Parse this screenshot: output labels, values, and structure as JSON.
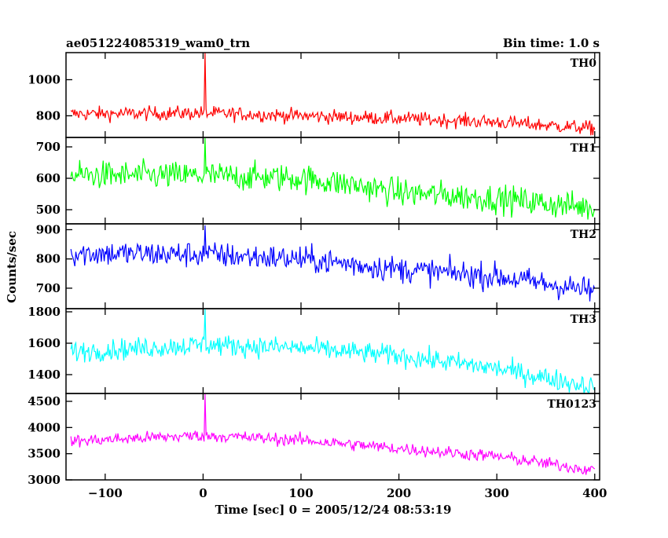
{
  "header": {
    "left": "ae051224085319_wam0_trn",
    "right": "Bin time: 1.0 s"
  },
  "chart_data": {
    "type": "line",
    "title": "ae051224085319_wam0_trn",
    "bin_time": "Bin time: 1.0 s",
    "xlabel": "Time [sec] 0 = 2005/12/24 08:53:19",
    "ylabel": "Counts/sec",
    "xlim": [
      -140,
      405
    ],
    "xticks": [
      -100,
      0,
      100,
      200,
      300,
      400
    ],
    "grid": false,
    "legend": "none",
    "panels": [
      {
        "name": "TH0",
        "color": "#ff0000",
        "ylim": [
          680,
          1150
        ],
        "yticks": [
          800,
          1000
        ],
        "trend": [
          [
            -135,
            810
          ],
          [
            0,
            815
          ],
          [
            100,
            800
          ],
          [
            200,
            785
          ],
          [
            300,
            765
          ],
          [
            400,
            730
          ]
        ],
        "noise": 28,
        "spike": {
          "x": 2,
          "y": 1150
        }
      },
      {
        "name": "TH1",
        "color": "#00ff00",
        "ylim": [
          455,
          730
        ],
        "yticks": [
          500,
          600,
          700
        ],
        "trend": [
          [
            -135,
            610
          ],
          [
            0,
            608
          ],
          [
            100,
            600
          ],
          [
            150,
            580
          ],
          [
            200,
            555
          ],
          [
            300,
            535
          ],
          [
            400,
            505
          ]
        ],
        "noise": 32,
        "spike": {
          "x": 2,
          "y": 728
        }
      },
      {
        "name": "TH2",
        "color": "#0000ff",
        "ylim": [
          630,
          920
        ],
        "yticks": [
          700,
          800,
          900
        ],
        "trend": [
          [
            -135,
            820
          ],
          [
            0,
            815
          ],
          [
            100,
            800
          ],
          [
            200,
            765
          ],
          [
            300,
            740
          ],
          [
            400,
            690
          ]
        ],
        "noise": 32,
        "spike": {
          "x": 2,
          "y": 915
        }
      },
      {
        "name": "TH3",
        "color": "#00ffff",
        "ylim": [
          1280,
          1820
        ],
        "yticks": [
          1400,
          1600,
          1800
        ],
        "trend": [
          [
            -135,
            1545
          ],
          [
            0,
            1590
          ],
          [
            100,
            1570
          ],
          [
            200,
            1520
          ],
          [
            300,
            1440
          ],
          [
            400,
            1320
          ]
        ],
        "noise": 48,
        "spike": {
          "x": 2,
          "y": 1820
        }
      },
      {
        "name": "TH0123",
        "color": "#ff00ff",
        "ylim": [
          3000,
          4650
        ],
        "yticks": [
          3000,
          3500,
          4000,
          4500
        ],
        "trend": [
          [
            -135,
            3740
          ],
          [
            0,
            3850
          ],
          [
            100,
            3760
          ],
          [
            200,
            3600
          ],
          [
            300,
            3450
          ],
          [
            400,
            3180
          ]
        ],
        "noise": 85,
        "spike": {
          "x": 2,
          "y": 4640
        }
      }
    ]
  }
}
